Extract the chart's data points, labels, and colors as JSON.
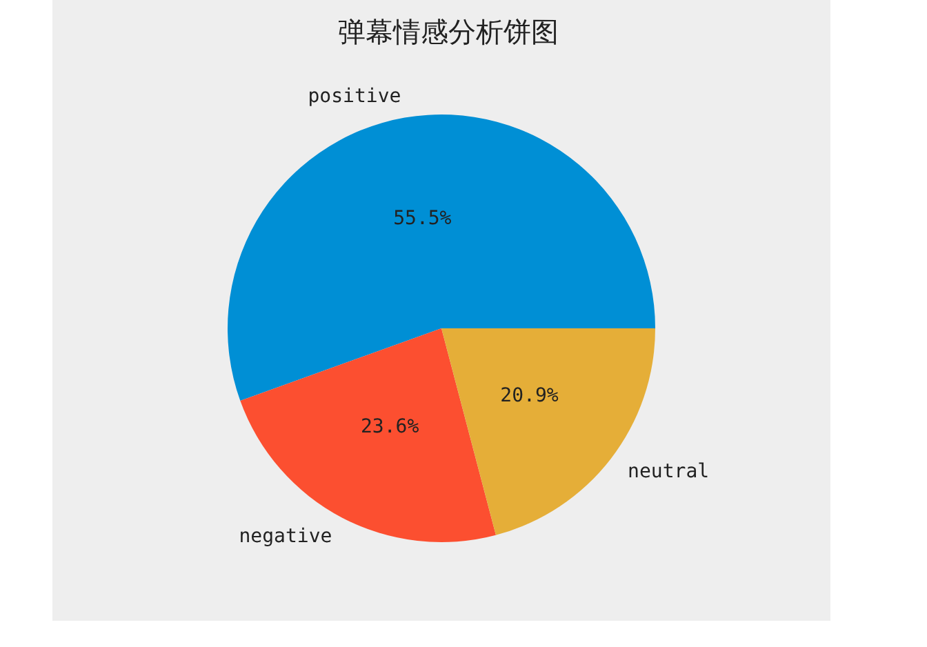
{
  "chart_data": {
    "type": "pie",
    "title": "弹幕情感分析饼图",
    "categories": [
      "positive",
      "negative",
      "neutral"
    ],
    "values": [
      55.5,
      23.6,
      20.9
    ],
    "colors": [
      "#008fd5",
      "#fc4f30",
      "#e5ae38"
    ],
    "value_labels": [
      "55.5%",
      "23.6%",
      "20.9%"
    ],
    "legend": false
  }
}
